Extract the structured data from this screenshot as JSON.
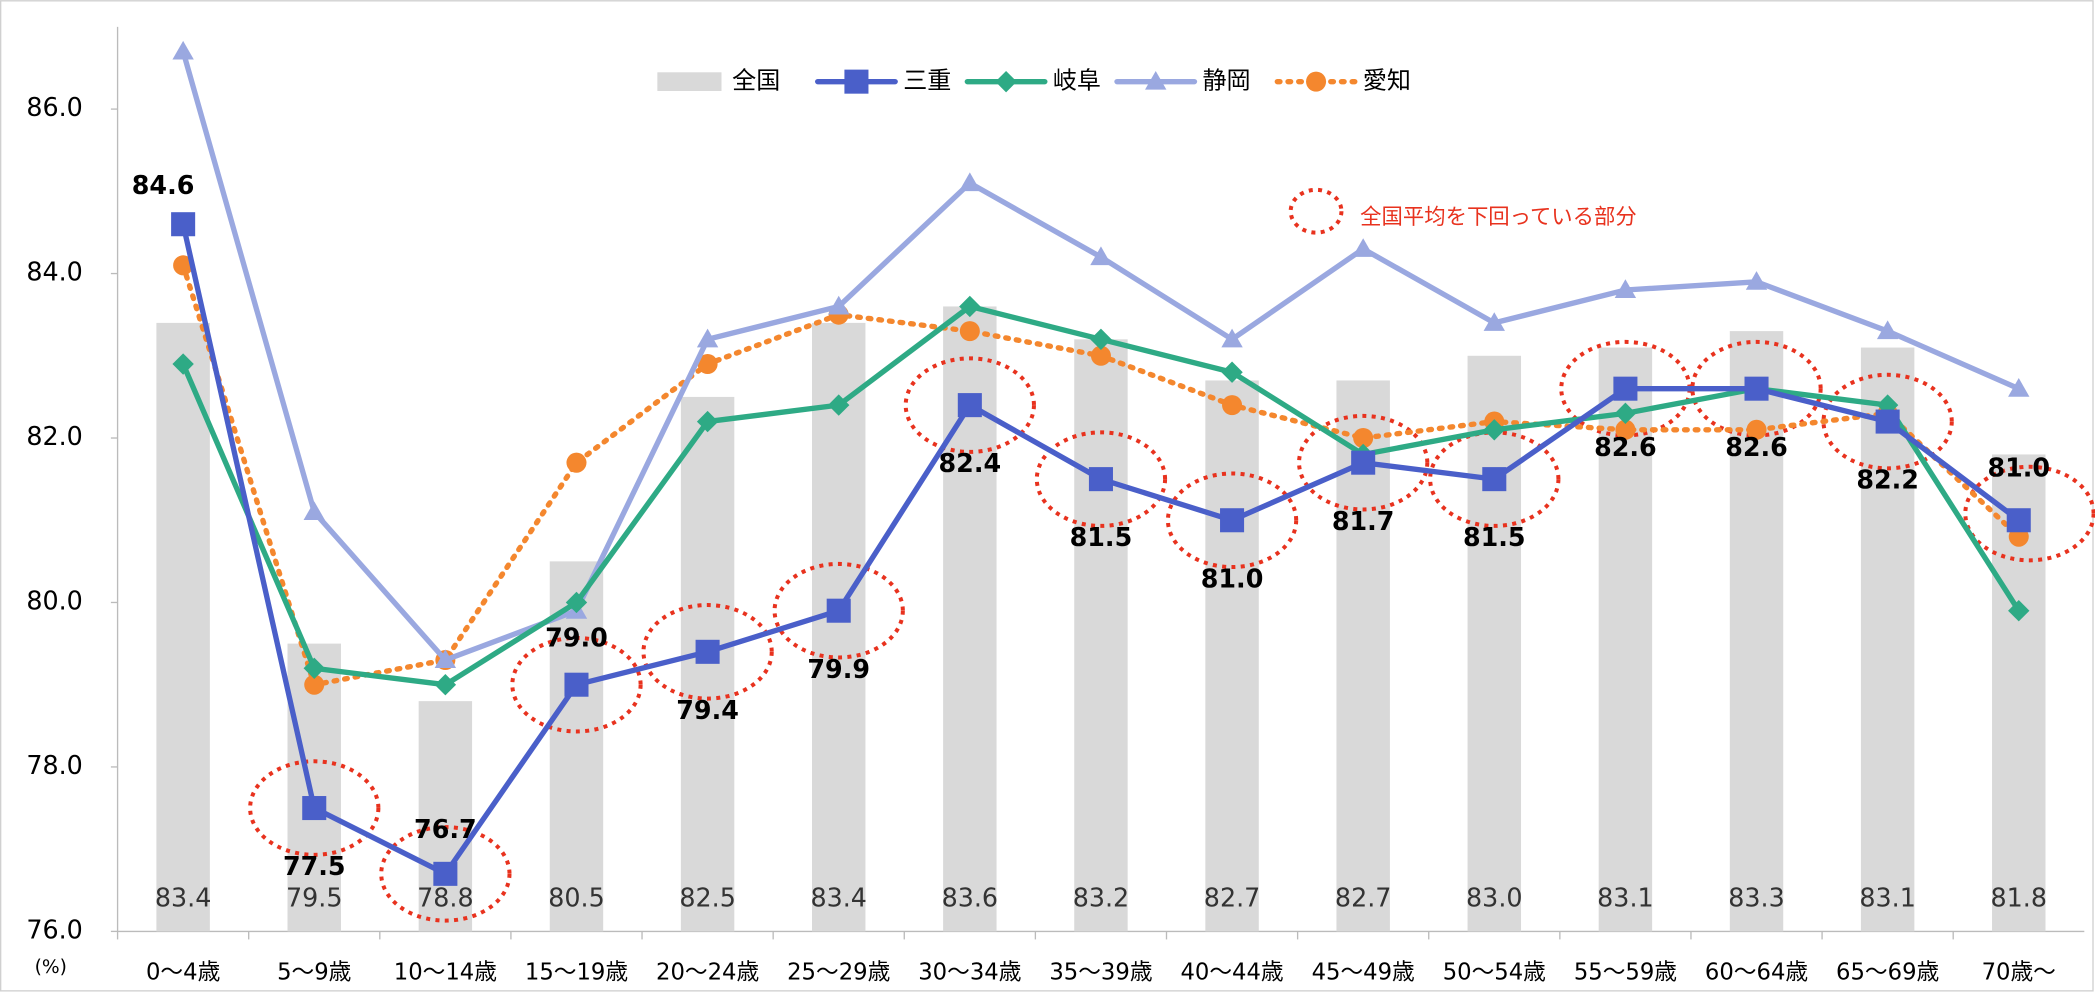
{
  "chart_data": {
    "type": "combo",
    "unit_label": "(%)",
    "annotation": "全国平均を下回っている部分",
    "categories": [
      "0～4歳",
      "5～9歳",
      "10～14歳",
      "15～19歳",
      "20～24歳",
      "25～29歳",
      "30～34歳",
      "35～39歳",
      "40～44歳",
      "45～49歳",
      "50～54歳",
      "55～59歳",
      "60～64歳",
      "65～69歳",
      "70歳～"
    ],
    "series": [
      {
        "name": "全国",
        "type": "bar",
        "color": "#d9d9d9",
        "values": [
          83.4,
          79.5,
          78.8,
          80.5,
          82.5,
          83.4,
          83.6,
          83.2,
          82.7,
          82.7,
          83.0,
          83.1,
          83.3,
          83.1,
          81.8
        ],
        "value_labels": [
          "83.4",
          "79.5",
          "78.8",
          "80.5",
          "82.5",
          "83.4",
          "83.6",
          "83.2",
          "82.7",
          "82.7",
          "83.0",
          "83.1",
          "83.3",
          "83.1",
          "81.8"
        ]
      },
      {
        "name": "三重",
        "type": "line",
        "marker": "square",
        "color": "#4a5fc9",
        "values": [
          84.6,
          77.5,
          76.7,
          79.0,
          79.4,
          79.9,
          82.4,
          81.5,
          81.0,
          81.7,
          81.5,
          82.6,
          82.6,
          82.2,
          81.0
        ],
        "value_labels": [
          "84.6",
          "77.5",
          "76.7",
          "79.0",
          "79.4",
          "79.9",
          "82.4",
          "81.5",
          "81.0",
          "81.7",
          "81.5",
          "82.6",
          "82.6",
          "82.2",
          "81.0"
        ]
      },
      {
        "name": "岐阜",
        "type": "line",
        "marker": "diamond",
        "color": "#2eaa85",
        "values": [
          82.9,
          79.2,
          79.0,
          80.0,
          82.2,
          82.4,
          83.6,
          83.2,
          82.8,
          81.8,
          82.1,
          82.3,
          82.6,
          82.4,
          79.9
        ]
      },
      {
        "name": "静岡",
        "type": "line",
        "marker": "triangle",
        "color": "#9aa8e0",
        "values": [
          86.7,
          81.1,
          79.3,
          79.9,
          83.2,
          83.6,
          85.1,
          84.2,
          83.2,
          84.3,
          83.4,
          83.8,
          83.9,
          83.3,
          82.6
        ]
      },
      {
        "name": "愛知",
        "type": "line",
        "marker": "circle",
        "dashed": true,
        "color": "#f4872e",
        "values": [
          84.1,
          79.0,
          79.3,
          81.7,
          82.9,
          83.5,
          83.3,
          83.0,
          82.4,
          82.0,
          82.2,
          82.1,
          82.1,
          82.3,
          80.8
        ]
      }
    ],
    "ylim": [
      76,
      87
    ],
    "yticks": [
      {
        "value": 76,
        "label": "76.0"
      },
      {
        "value": 78,
        "label": "78.0"
      },
      {
        "value": 80,
        "label": "80.0"
      },
      {
        "value": 82,
        "label": "82.0"
      },
      {
        "value": 84,
        "label": "84.0"
      },
      {
        "value": 86,
        "label": "86.0"
      }
    ],
    "highlight_color": "#e8321e"
  }
}
